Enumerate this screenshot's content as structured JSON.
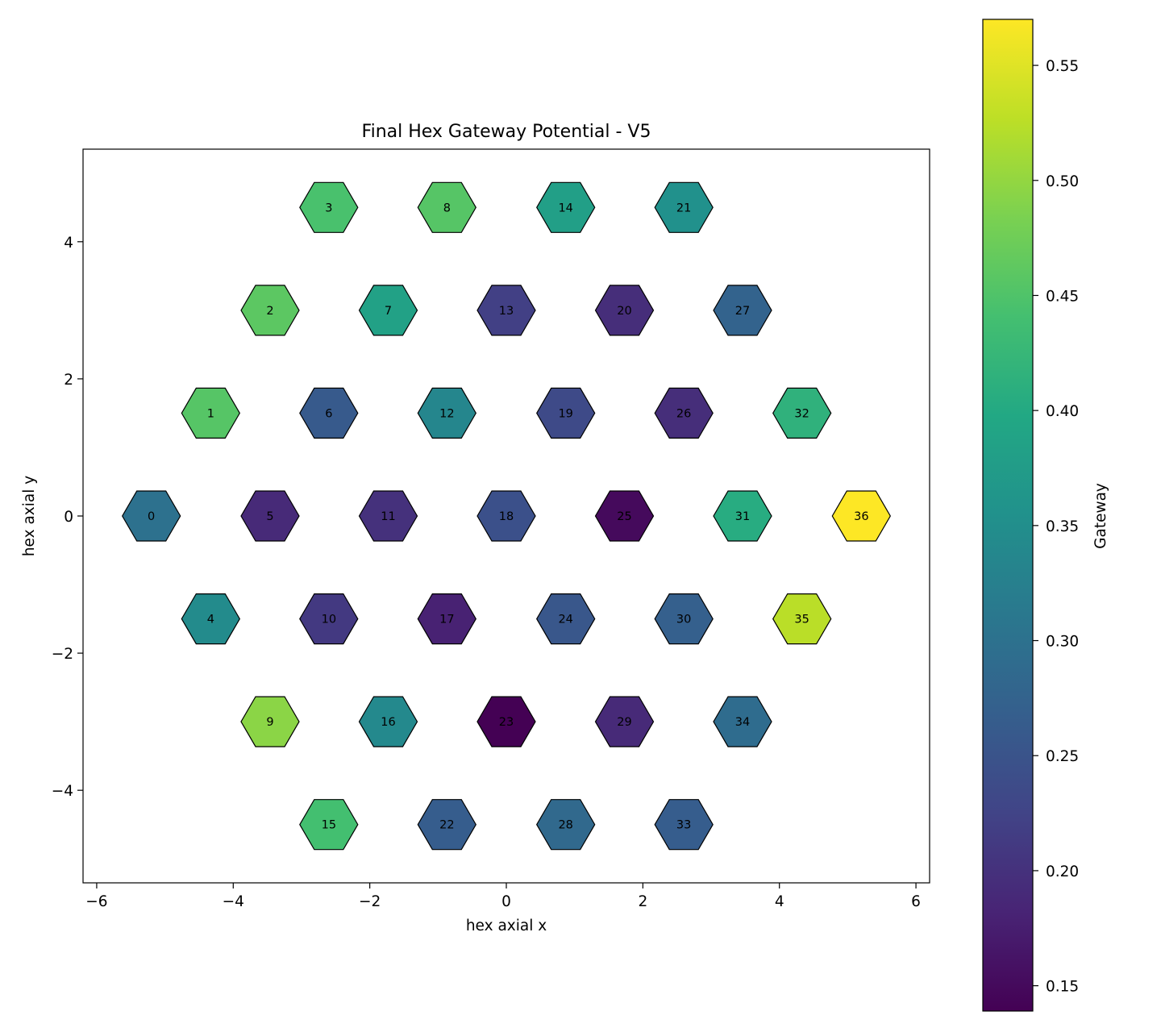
{
  "chart_data": {
    "type": "heatmap",
    "title": "Final Hex Gateway Potential - V5",
    "xlabel": "hex axial x",
    "ylabel": "hex axial y",
    "xlim": [
      -6.2,
      6.2
    ],
    "ylim": [
      -5.35,
      5.35
    ],
    "x_ticks": [
      -6,
      -4,
      -2,
      0,
      2,
      4,
      6
    ],
    "y_ticks": [
      -4,
      -2,
      0,
      2,
      4
    ],
    "colorbar": {
      "label": "Gateway",
      "colormap": "viridis",
      "range": [
        0.139,
        0.57
      ],
      "ticks": [
        0.15,
        0.2,
        0.25,
        0.3,
        0.35,
        0.4,
        0.45,
        0.5,
        0.55
      ],
      "tick_labels": [
        "0.15",
        "0.20",
        "0.25",
        "0.30",
        "0.35",
        "0.40",
        "0.45",
        "0.50",
        "0.55"
      ]
    },
    "cells": [
      {
        "id": "0",
        "x": -5.2,
        "y": 0.0,
        "value": 0.3
      },
      {
        "id": "1",
        "x": -4.33,
        "y": 1.5,
        "value": 0.455
      },
      {
        "id": "2",
        "x": -3.46,
        "y": 3.0,
        "value": 0.46
      },
      {
        "id": "3",
        "x": -2.6,
        "y": 4.5,
        "value": 0.445
      },
      {
        "id": "4",
        "x": -4.33,
        "y": -1.5,
        "value": 0.345
      },
      {
        "id": "5",
        "x": -3.46,
        "y": 0.0,
        "value": 0.19
      },
      {
        "id": "6",
        "x": -2.6,
        "y": 1.5,
        "value": 0.26
      },
      {
        "id": "7",
        "x": -1.73,
        "y": 3.0,
        "value": 0.385
      },
      {
        "id": "8",
        "x": -0.87,
        "y": 4.5,
        "value": 0.455
      },
      {
        "id": "9",
        "x": -3.46,
        "y": -3.0,
        "value": 0.495
      },
      {
        "id": "10",
        "x": -2.6,
        "y": -1.5,
        "value": 0.21
      },
      {
        "id": "11",
        "x": -1.73,
        "y": 0.0,
        "value": 0.2
      },
      {
        "id": "12",
        "x": -0.87,
        "y": 1.5,
        "value": 0.335
      },
      {
        "id": "13",
        "x": 0.0,
        "y": 3.0,
        "value": 0.22
      },
      {
        "id": "14",
        "x": 0.87,
        "y": 4.5,
        "value": 0.38
      },
      {
        "id": "15",
        "x": -2.6,
        "y": -4.5,
        "value": 0.44
      },
      {
        "id": "16",
        "x": -1.73,
        "y": -3.0,
        "value": 0.34
      },
      {
        "id": "17",
        "x": -0.87,
        "y": -1.5,
        "value": 0.18
      },
      {
        "id": "18",
        "x": 0.0,
        "y": 0.0,
        "value": 0.245
      },
      {
        "id": "19",
        "x": 0.87,
        "y": 1.5,
        "value": 0.235
      },
      {
        "id": "20",
        "x": 1.73,
        "y": 3.0,
        "value": 0.195
      },
      {
        "id": "21",
        "x": 2.6,
        "y": 4.5,
        "value": 0.355
      },
      {
        "id": "22",
        "x": -0.87,
        "y": -4.5,
        "value": 0.265
      },
      {
        "id": "23",
        "x": 0.0,
        "y": -3.0,
        "value": 0.139
      },
      {
        "id": "24",
        "x": 0.87,
        "y": -1.5,
        "value": 0.255
      },
      {
        "id": "25",
        "x": 1.73,
        "y": 0.0,
        "value": 0.15
      },
      {
        "id": "26",
        "x": 2.6,
        "y": 1.5,
        "value": 0.195
      },
      {
        "id": "27",
        "x": 3.46,
        "y": 3.0,
        "value": 0.275
      },
      {
        "id": "28",
        "x": 0.87,
        "y": -4.5,
        "value": 0.285
      },
      {
        "id": "29",
        "x": 1.73,
        "y": -3.0,
        "value": 0.19
      },
      {
        "id": "30",
        "x": 2.6,
        "y": -1.5,
        "value": 0.27
      },
      {
        "id": "31",
        "x": 3.46,
        "y": 0.0,
        "value": 0.405
      },
      {
        "id": "32",
        "x": 4.33,
        "y": 1.5,
        "value": 0.415
      },
      {
        "id": "33",
        "x": 2.6,
        "y": -4.5,
        "value": 0.265
      },
      {
        "id": "34",
        "x": 3.46,
        "y": -3.0,
        "value": 0.29
      },
      {
        "id": "35",
        "x": 4.33,
        "y": -1.5,
        "value": 0.525
      },
      {
        "id": "36",
        "x": 5.2,
        "y": 0.0,
        "value": 0.57
      }
    ]
  }
}
